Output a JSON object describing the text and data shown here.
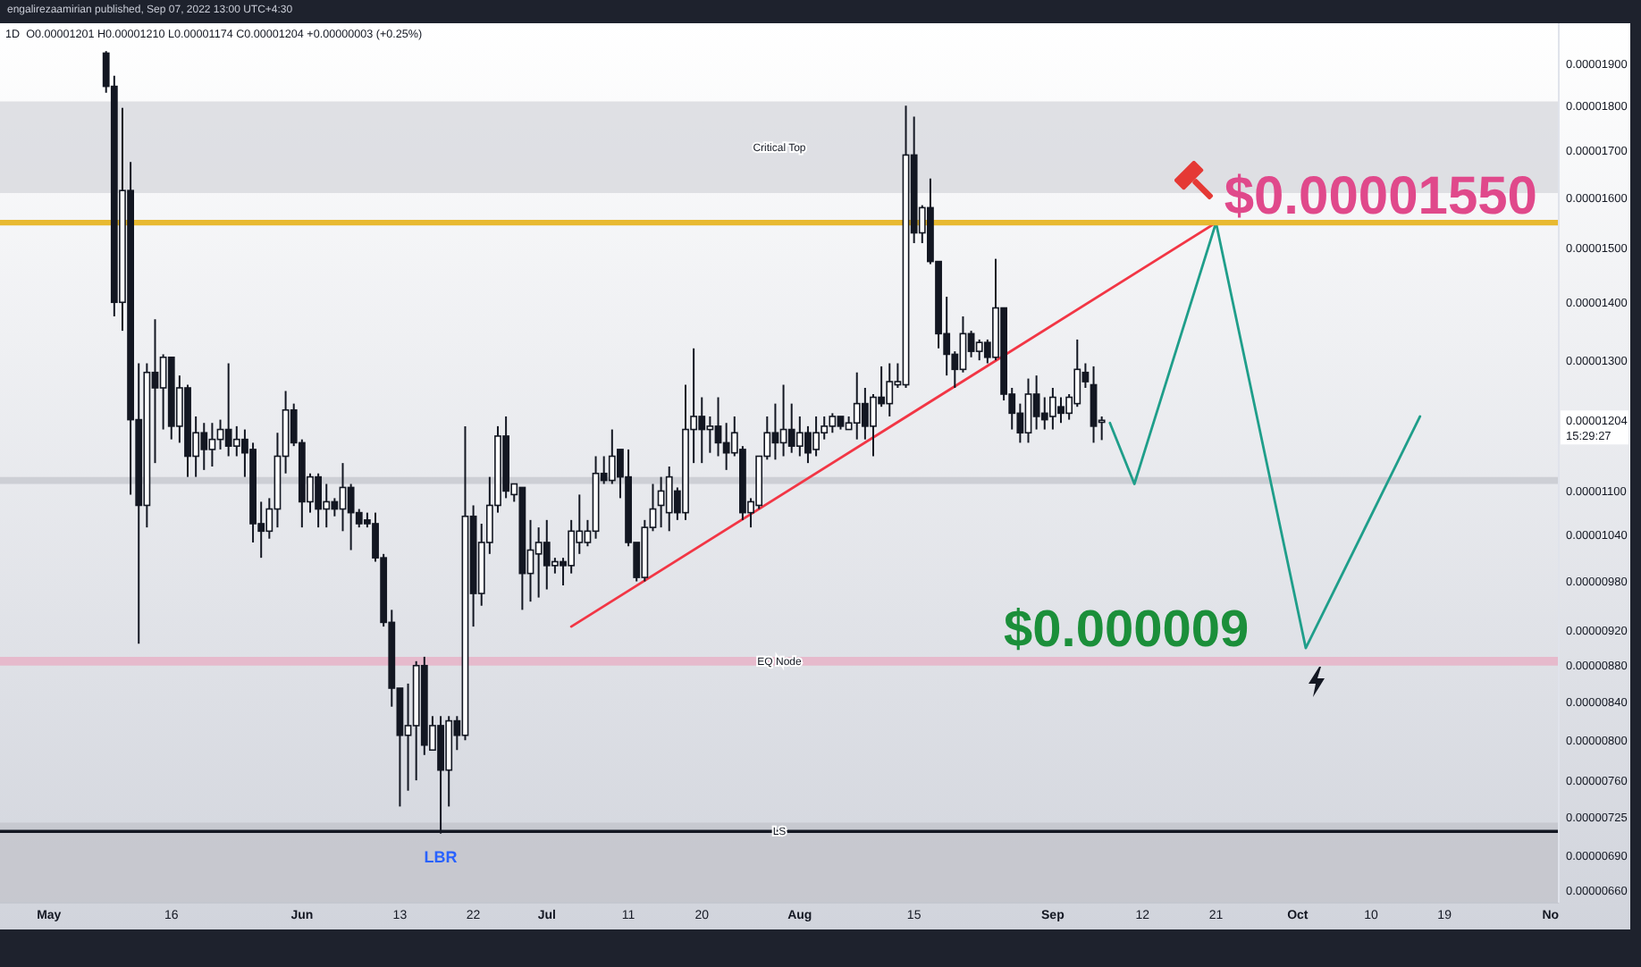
{
  "chart_data": {
    "type": "candlestick",
    "title": "1D",
    "subtitle": "O0.00001201 H0.00001210 L0.00001174 C0.00001204 +0.00000003 (+0.25%)",
    "color": "#131722",
    "x": [
      "2022-05-08",
      "2022-05-09",
      "2022-05-10",
      "2022-05-11",
      "2022-05-12",
      "2022-05-13",
      "2022-05-14",
      "2022-05-15",
      "2022-05-16",
      "2022-05-17",
      "2022-05-18",
      "2022-05-19",
      "2022-05-20",
      "2022-05-21",
      "2022-05-22",
      "2022-05-23",
      "2022-05-24",
      "2022-05-25",
      "2022-05-26",
      "2022-05-27",
      "2022-05-28",
      "2022-05-29",
      "2022-05-30",
      "2022-05-31",
      "2022-06-01",
      "2022-06-02",
      "2022-06-03",
      "2022-06-04",
      "2022-06-05",
      "2022-06-06",
      "2022-06-07",
      "2022-06-08",
      "2022-06-09",
      "2022-06-10",
      "2022-06-11",
      "2022-06-12",
      "2022-06-13",
      "2022-06-14",
      "2022-06-15",
      "2022-06-16",
      "2022-06-17",
      "2022-06-18",
      "2022-06-19",
      "2022-06-20",
      "2022-06-21",
      "2022-06-22",
      "2022-06-23",
      "2022-06-24",
      "2022-06-25",
      "2022-06-26",
      "2022-06-27",
      "2022-06-28",
      "2022-06-29",
      "2022-06-30",
      "2022-07-01",
      "2022-07-02",
      "2022-07-03",
      "2022-07-04",
      "2022-07-05",
      "2022-07-06",
      "2022-07-07",
      "2022-07-08",
      "2022-07-09",
      "2022-07-10",
      "2022-07-11",
      "2022-07-12",
      "2022-07-13",
      "2022-07-14",
      "2022-07-15",
      "2022-07-16",
      "2022-07-17",
      "2022-07-18",
      "2022-07-19",
      "2022-07-20",
      "2022-07-21",
      "2022-07-22",
      "2022-07-23",
      "2022-07-24",
      "2022-07-25",
      "2022-07-26",
      "2022-07-27",
      "2022-07-28",
      "2022-07-29",
      "2022-07-30",
      "2022-07-31",
      "2022-08-01",
      "2022-08-02",
      "2022-08-03",
      "2022-08-04",
      "2022-08-05",
      "2022-08-06",
      "2022-08-07",
      "2022-08-08",
      "2022-08-09",
      "2022-08-10",
      "2022-08-11",
      "2022-08-12",
      "2022-08-13",
      "2022-08-14",
      "2022-08-15",
      "2022-08-16",
      "2022-08-17",
      "2022-08-18",
      "2022-08-19",
      "2022-08-20",
      "2022-08-21",
      "2022-08-22",
      "2022-08-23",
      "2022-08-24",
      "2022-08-25",
      "2022-08-26",
      "2022-08-27",
      "2022-08-28",
      "2022-08-29",
      "2022-08-30",
      "2022-08-31",
      "2022-09-01",
      "2022-09-02",
      "2022-09-03",
      "2022-09-04",
      "2022-09-05",
      "2022-09-06",
      "2022-09-07"
    ],
    "ohlc": [
      [
        1.925e-05,
        1.93e-05,
        1.83e-05,
        1.845e-05
      ],
      [
        1.845e-05,
        1.87e-05,
        1.375e-05,
        1.4e-05
      ],
      [
        1.4e-05,
        1.795e-05,
        1.35e-05,
        1.615e-05
      ],
      [
        1.615e-05,
        1.675e-05,
        1.095e-05,
        1.205e-05
      ],
      [
        1.205e-05,
        1.295e-05,
        9.05e-06,
        1.08e-05
      ],
      [
        1.08e-05,
        1.295e-05,
        1.05e-05,
        1.28e-05
      ],
      [
        1.28e-05,
        1.37e-05,
        1.14e-05,
        1.255e-05
      ],
      [
        1.255e-05,
        1.31e-05,
        1.19e-05,
        1.305e-05
      ],
      [
        1.305e-05,
        1.305e-05,
        1.175e-05,
        1.195e-05
      ],
      [
        1.195e-05,
        1.275e-05,
        1.17e-05,
        1.255e-05
      ],
      [
        1.255e-05,
        1.26e-05,
        1.12e-05,
        1.15e-05
      ],
      [
        1.15e-05,
        1.21e-05,
        1.12e-05,
        1.185e-05
      ],
      [
        1.185e-05,
        1.2e-05,
        1.13e-05,
        1.16e-05
      ],
      [
        1.16e-05,
        1.2e-05,
        1.135e-05,
        1.175e-05
      ],
      [
        1.175e-05,
        1.205e-05,
        1.16e-05,
        1.19e-05
      ],
      [
        1.19e-05,
        1.295e-05,
        1.15e-05,
        1.165e-05
      ],
      [
        1.165e-05,
        1.195e-05,
        1.15e-05,
        1.175e-05
      ],
      [
        1.175e-05,
        1.19e-05,
        1.12e-05,
        1.155e-05
      ],
      [
        1.16e-05,
        1.17e-05,
        1.03e-05,
        1.055e-05
      ],
      [
        1.055e-05,
        1.085e-05,
        1.01e-05,
        1.045e-05
      ],
      [
        1.045e-05,
        1.09e-05,
        1.035e-05,
        1.075e-05
      ],
      [
        1.075e-05,
        1.185e-05,
        1.05e-05,
        1.15e-05
      ],
      [
        1.15e-05,
        1.25e-05,
        1.125e-05,
        1.22e-05
      ],
      [
        1.22e-05,
        1.23e-05,
        1.165e-05,
        1.17e-05
      ],
      [
        1.17e-05,
        1.175e-05,
        1.05e-05,
        1.085e-05
      ],
      [
        1.085e-05,
        1.125e-05,
        1.07e-05,
        1.12e-05
      ],
      [
        1.12e-05,
        1.125e-05,
        1.05e-05,
        1.075e-05
      ],
      [
        1.075e-05,
        1.11e-05,
        1.05e-05,
        1.085e-05
      ],
      [
        1.085e-05,
        1.09e-05,
        1.065e-05,
        1.075e-05
      ],
      [
        1.075e-05,
        1.14e-05,
        1.045e-05,
        1.105e-05
      ],
      [
        1.105e-05,
        1.11e-05,
        1.02e-05,
        1.07e-05
      ],
      [
        1.07e-05,
        1.075e-05,
        1.05e-05,
        1.055e-05
      ],
      [
        1.06e-05,
        1.07e-05,
        1.05e-05,
        1.055e-05
      ],
      [
        1.055e-05,
        1.07e-05,
        1.005e-05,
        1.01e-05
      ],
      [
        1.01e-05,
        1.015e-05,
        9.25e-06,
        9.3e-06
      ],
      [
        9.3e-06,
        9.45e-06,
        8.35e-06,
        8.55e-06
      ],
      [
        8.55e-06,
        8.55e-06,
        7.35e-06,
        8.05e-06
      ],
      [
        8.05e-06,
        8.6e-06,
        7.5e-06,
        8.15e-06
      ],
      [
        8.15e-06,
        8.85e-06,
        7.6e-06,
        8.8e-06
      ],
      [
        8.8e-06,
        8.9e-06,
        7.85e-06,
        7.95e-06
      ],
      [
        7.9e-06,
        8.25e-06,
        7.9e-06,
        8.15e-06
      ],
      [
        8.15e-06,
        8.25e-06,
        7.1e-06,
        7.7e-06
      ],
      [
        7.7e-06,
        8.25e-06,
        7.35e-06,
        8.2e-06
      ],
      [
        8.2e-06,
        8.25e-06,
        7.9e-06,
        8.05e-06
      ],
      [
        8.05e-06,
        1.195e-05,
        8e-06,
        1.065e-05
      ],
      [
        1.065e-05,
        1.08e-05,
        9.25e-06,
        9.65e-06
      ],
      [
        9.65e-06,
        1.055e-05,
        9.5e-06,
        1.03e-05
      ],
      [
        1.03e-05,
        1.12e-05,
        1.015e-05,
        1.08e-05
      ],
      [
        1.08e-05,
        1.195e-05,
        1.07e-05,
        1.18e-05
      ],
      [
        1.18e-05,
        1.21e-05,
        1.09e-05,
        1.1e-05
      ],
      [
        1.095e-05,
        1.11e-05,
        1.085e-05,
        1.11e-05
      ],
      [
        1.105e-05,
        1.105e-05,
        9.45e-06,
        9.9e-06
      ],
      [
        9.9e-06,
        1.06e-05,
        9.55e-06,
        1.02e-05
      ],
      [
        1.015e-05,
        1.05e-05,
        9.6e-06,
        1.03e-05
      ],
      [
        1.03e-05,
        1.06e-05,
        9.7e-06,
        1e-05
      ],
      [
        1e-05,
        1.01e-05,
        9.9e-06,
        1.005e-05
      ],
      [
        1.005e-05,
        1.01e-05,
        9.75e-06,
        1e-05
      ],
      [
        1e-05,
        1.06e-05,
        9.9e-06,
        1.045e-05
      ],
      [
        1.03e-05,
        1.095e-05,
        1.015e-05,
        1.045e-05
      ],
      [
        1.03e-05,
        1.06e-05,
        1.025e-05,
        1.045e-05
      ],
      [
        1.045e-05,
        1.15e-05,
        1.035e-05,
        1.125e-05
      ],
      [
        1.125e-05,
        1.15e-05,
        1.11e-05,
        1.115e-05
      ],
      [
        1.115e-05,
        1.19e-05,
        1.11e-05,
        1.15e-05
      ],
      [
        1.16e-05,
        1.16e-05,
        1.09e-05,
        1.12e-05
      ],
      [
        1.12e-05,
        1.16e-05,
        1.025e-05,
        1.03e-05
      ],
      [
        1.03e-05,
        1.03e-05,
        9.8e-06,
        9.85e-06
      ],
      [
        9.85e-06,
        1.06e-05,
        9.8e-06,
        1.05e-05
      ],
      [
        1.05e-05,
        1.11e-05,
        1.045e-05,
        1.075e-05
      ],
      [
        1.08e-05,
        1.12e-05,
        1.05e-05,
        1.1e-05
      ],
      [
        1.07e-05,
        1.135e-05,
        1.045e-05,
        1.12e-05
      ],
      [
        1.1e-05,
        1.105e-05,
        1.06e-05,
        1.07e-05
      ],
      [
        1.07e-05,
        1.26e-05,
        1.06e-05,
        1.19e-05
      ],
      [
        1.19e-05,
        1.32e-05,
        1.14e-05,
        1.21e-05
      ],
      [
        1.21e-05,
        1.24e-05,
        1.14e-05,
        1.19e-05
      ],
      [
        1.19e-05,
        1.21e-05,
        1.155e-05,
        1.195e-05
      ],
      [
        1.195e-05,
        1.24e-05,
        1.15e-05,
        1.17e-05
      ],
      [
        1.17e-05,
        1.2e-05,
        1.13e-05,
        1.155e-05
      ],
      [
        1.155e-05,
        1.21e-05,
        1.15e-05,
        1.185e-05
      ],
      [
        1.16e-05,
        1.165e-05,
        1.06e-05,
        1.07e-05
      ],
      [
        1.07e-05,
        1.09e-05,
        1.05e-05,
        1.085e-05
      ],
      [
        1.08e-05,
        1.15e-05,
        1.075e-05,
        1.15e-05
      ],
      [
        1.15e-05,
        1.21e-05,
        1.145e-05,
        1.185e-05
      ],
      [
        1.185e-05,
        1.23e-05,
        1.145e-05,
        1.17e-05
      ],
      [
        1.17e-05,
        1.26e-05,
        1.15e-05,
        1.19e-05
      ],
      [
        1.19e-05,
        1.23e-05,
        1.155e-05,
        1.165e-05
      ],
      [
        1.165e-05,
        1.21e-05,
        1.15e-05,
        1.185e-05
      ],
      [
        1.185e-05,
        1.195e-05,
        1.14e-05,
        1.155e-05
      ],
      [
        1.16e-05,
        1.21e-05,
        1.15e-05,
        1.185e-05
      ],
      [
        1.185e-05,
        1.21e-05,
        1.175e-05,
        1.195e-05
      ],
      [
        1.195e-05,
        1.215e-05,
        1.185e-05,
        1.21e-05
      ],
      [
        1.21e-05,
        1.21e-05,
        1.19e-05,
        1.195e-05
      ],
      [
        1.19e-05,
        1.21e-05,
        1.19e-05,
        1.2e-05
      ],
      [
        1.2e-05,
        1.28e-05,
        1.175e-05,
        1.23e-05
      ],
      [
        1.23e-05,
        1.255e-05,
        1.175e-05,
        1.195e-05
      ],
      [
        1.195e-05,
        1.245e-05,
        1.15e-05,
        1.24e-05
      ],
      [
        1.24e-05,
        1.29e-05,
        1.225e-05,
        1.23e-05
      ],
      [
        1.23e-05,
        1.295e-05,
        1.21e-05,
        1.265e-05
      ],
      [
        1.26e-05,
        1.295e-05,
        1.255e-05,
        1.265e-05
      ],
      [
        1.26e-05,
        1.8e-05,
        1.255e-05,
        1.69e-05
      ],
      [
        1.69e-05,
        1.775e-05,
        1.51e-05,
        1.53e-05
      ],
      [
        1.53e-05,
        1.585e-05,
        1.51e-05,
        1.58e-05
      ],
      [
        1.58e-05,
        1.64e-05,
        1.47e-05,
        1.475e-05
      ],
      [
        1.475e-05,
        1.475e-05,
        1.32e-05,
        1.345e-05
      ],
      [
        1.345e-05,
        1.41e-05,
        1.275e-05,
        1.31e-05
      ],
      [
        1.31e-05,
        1.315e-05,
        1.255e-05,
        1.285e-05
      ],
      [
        1.285e-05,
        1.375e-05,
        1.28e-05,
        1.345e-05
      ],
      [
        1.345e-05,
        1.35e-05,
        1.305e-05,
        1.315e-05
      ],
      [
        1.315e-05,
        1.335e-05,
        1.3e-05,
        1.33e-05
      ],
      [
        1.33e-05,
        1.335e-05,
        1.295e-05,
        1.305e-05
      ],
      [
        1.305e-05,
        1.48e-05,
        1.3e-05,
        1.39e-05
      ],
      [
        1.39e-05,
        1.39e-05,
        1.235e-05,
        1.245e-05
      ],
      [
        1.245e-05,
        1.255e-05,
        1.19e-05,
        1.215e-05
      ],
      [
        1.215e-05,
        1.23e-05,
        1.17e-05,
        1.185e-05
      ],
      [
        1.185e-05,
        1.27e-05,
        1.17e-05,
        1.245e-05
      ],
      [
        1.245e-05,
        1.275e-05,
        1.19e-05,
        1.21e-05
      ],
      [
        1.215e-05,
        1.24e-05,
        1.19e-05,
        1.205e-05
      ],
      [
        1.21e-05,
        1.255e-05,
        1.19e-05,
        1.24e-05
      ],
      [
        1.225e-05,
        1.24e-05,
        1.2e-05,
        1.215e-05
      ],
      [
        1.215e-05,
        1.245e-05,
        1.205e-05,
        1.24e-05
      ],
      [
        1.23e-05,
        1.335e-05,
        1.225e-05,
        1.285e-05
      ],
      [
        1.28e-05,
        1.295e-05,
        1.255e-05,
        1.265e-05
      ],
      [
        1.26e-05,
        1.29e-05,
        1.17e-05,
        1.195e-05
      ],
      [
        1.201e-05,
        1.21e-05,
        1.174e-05,
        1.204e-05
      ]
    ],
    "series": [
      {
        "type": "line",
        "x": [
          "2022-07-04",
          "2022-09-21"
        ],
        "values": [
          9.25e-06,
          1.55e-05
        ],
        "color": "#f23645"
      },
      {
        "type": "line",
        "x": [
          "2022-09-08",
          "2022-09-11",
          "2022-09-21",
          "2022-10-02",
          "2022-10-16"
        ],
        "values": [
          1.2e-05,
          1.11e-05,
          1.55e-05,
          9e-06,
          1.21e-05
        ],
        "color": "#1f9e8a"
      }
    ],
    "xlim": [
      "2022-04-25",
      "2022-11-02"
    ],
    "xticks": [
      {
        "value": "2022-05-01",
        "label": "May"
      },
      {
        "value": "2022-05-16",
        "label": "16"
      },
      {
        "value": "2022-06-01",
        "label": "Jun"
      },
      {
        "value": "2022-06-13",
        "label": "13"
      },
      {
        "value": "2022-06-22",
        "label": "22"
      },
      {
        "value": "2022-07-01",
        "label": "Jul"
      },
      {
        "value": "2022-07-11",
        "label": "11"
      },
      {
        "value": "2022-07-20",
        "label": "20"
      },
      {
        "value": "2022-08-01",
        "label": "Aug"
      },
      {
        "value": "2022-08-15",
        "label": "15"
      },
      {
        "value": "2022-09-01",
        "label": "Sep"
      },
      {
        "value": "2022-09-12",
        "label": "12"
      },
      {
        "value": "2022-09-21",
        "label": "21"
      },
      {
        "value": "2022-10-01",
        "label": "Oct"
      },
      {
        "value": "2022-10-10",
        "label": "10"
      },
      {
        "value": "2022-10-19",
        "label": "19"
      },
      {
        "value": "2022-11-01",
        "label": "No"
      }
    ],
    "ylim": [
      6.5e-06,
      2e-05
    ],
    "log": true,
    "yticks": [
      {
        "value": 6.6e-06,
        "label": "0.00000660"
      },
      {
        "value": 6.9e-06,
        "label": "0.00000690"
      },
      {
        "value": 7.25e-06,
        "label": "0.00000725"
      },
      {
        "value": 7.6e-06,
        "label": "0.00000760"
      },
      {
        "value": 8e-06,
        "label": "0.00000800"
      },
      {
        "value": 8.4e-06,
        "label": "0.00000840"
      },
      {
        "value": 8.8e-06,
        "label": "0.00000880"
      },
      {
        "value": 9.2e-06,
        "label": "0.00000920"
      },
      {
        "value": 9.8e-06,
        "label": "0.00000980"
      },
      {
        "value": 1.04e-05,
        "label": "0.00001040"
      },
      {
        "value": 1.1e-05,
        "label": "0.00001100"
      },
      {
        "value": 1.204e-05,
        "label": "0.00001204"
      },
      {
        "value": 1.3e-05,
        "label": "0.00001300"
      },
      {
        "value": 1.4e-05,
        "label": "0.00001400"
      },
      {
        "value": 1.5e-05,
        "label": "0.00001500"
      },
      {
        "value": 1.6e-05,
        "label": "0.00001600"
      },
      {
        "value": 1.7e-05,
        "label": "0.00001700"
      },
      {
        "value": 1.8e-05,
        "label": "0.00001800"
      },
      {
        "value": 1.9e-05,
        "label": "0.00001900"
      }
    ],
    "bands": [
      {
        "axis": "y",
        "from": 1.61e-05,
        "to": 1.81e-05,
        "label": "Critical Top",
        "color": "#d9dadf"
      },
      {
        "axis": "y",
        "from": 1.11e-05,
        "to": 1.12e-05,
        "color": "#c8cad0"
      },
      {
        "axis": "y",
        "from": 8.8e-06,
        "to": 8.9e-06,
        "label": "EQ Node",
        "color": "#e8b3c7"
      },
      {
        "axis": "y",
        "from": 6.5e-06,
        "to": 7.2e-06,
        "color": "#c4c6cc"
      }
    ],
    "ref_lines": [
      {
        "axis": "y",
        "value": 1.55e-05,
        "color": "#e8b931"
      },
      {
        "axis": "y",
        "value": 7.12e-06,
        "label": "LS",
        "color": "#131722"
      }
    ],
    "annotations": [
      "engalirezaamirian published, Sep 07, 2022 13:00 UTC+4:30",
      "15:29:27",
      "LBR",
      {
        "text": "$0.00001550",
        "x": "2022-09-22",
        "y": 1.55e-05
      },
      {
        "text": "$0.000009",
        "x": "2022-08-26",
        "y": 9e-06
      }
    ]
  }
}
